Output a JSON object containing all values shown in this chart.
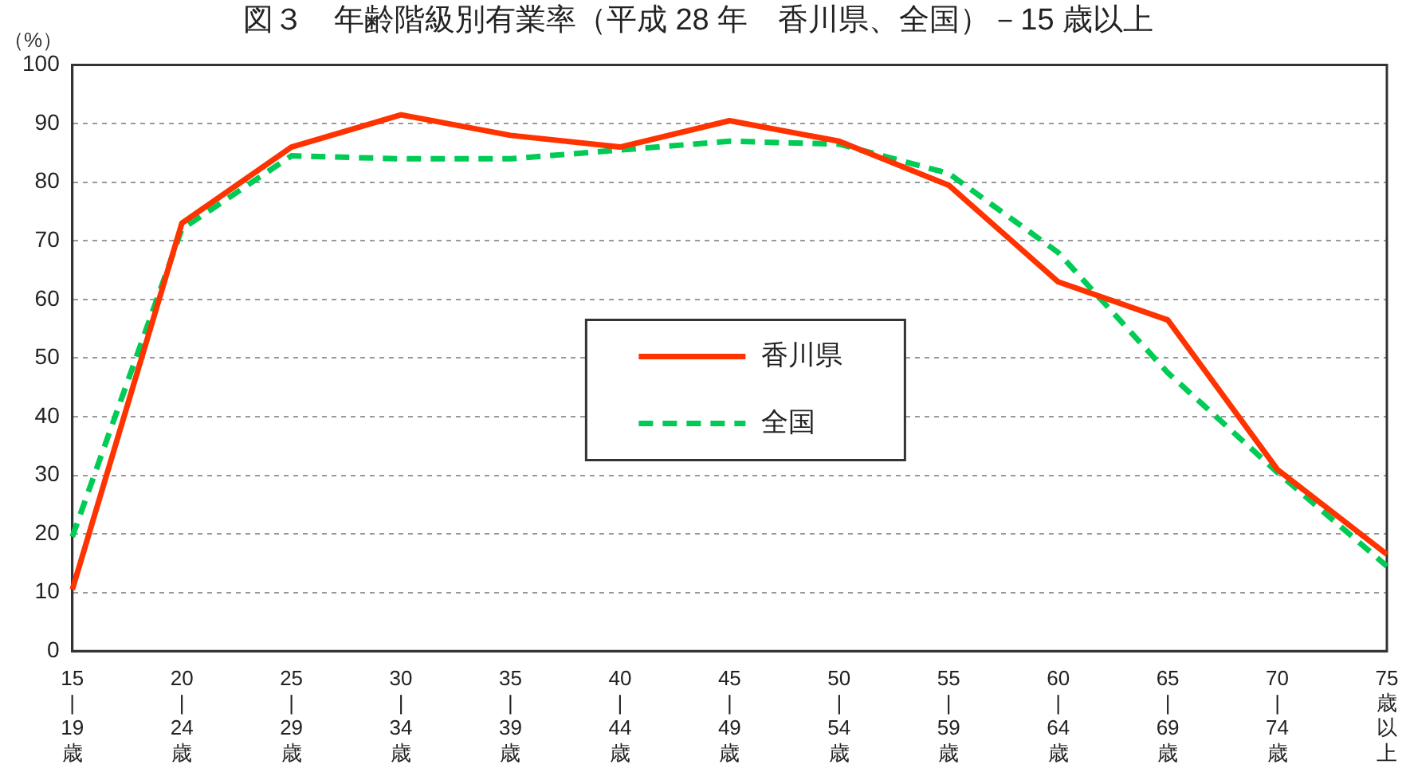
{
  "chart_data": {
    "type": "line",
    "title": "図３　年齢階級別有業率（平成 28 年　香川県、全国）－15 歳以上",
    "ylabel": "（%）",
    "categories": [
      "15\n|\n19\n歳",
      "20\n|\n24\n歳",
      "25\n|\n29\n歳",
      "30\n|\n34\n歳",
      "35\n|\n39\n歳",
      "40\n|\n44\n歳",
      "45\n|\n49\n歳",
      "50\n|\n54\n歳",
      "55\n|\n59\n歳",
      "60\n|\n64\n歳",
      "65\n|\n69\n歳",
      "70\n|\n74\n歳",
      "75\n歳以上"
    ],
    "series": [
      {
        "name": "香川県",
        "color": "#ff3300",
        "line_style": "solid",
        "values": [
          10.5,
          73,
          86,
          91.5,
          88,
          86,
          90.5,
          87,
          79.5,
          63,
          56.5,
          31,
          16.5
        ]
      },
      {
        "name": "全国",
        "color": "#00cc55",
        "line_style": "dashed",
        "values": [
          19.5,
          72,
          84.5,
          84,
          84,
          85.5,
          87,
          86.5,
          81.5,
          68,
          47.5,
          30.5,
          14.5
        ]
      }
    ],
    "ylim": [
      0,
      100
    ],
    "yticks": [
      0,
      10,
      20,
      30,
      40,
      50,
      60,
      70,
      80,
      90,
      100
    ],
    "grid": "y",
    "legend": "center",
    "marker": "none"
  }
}
